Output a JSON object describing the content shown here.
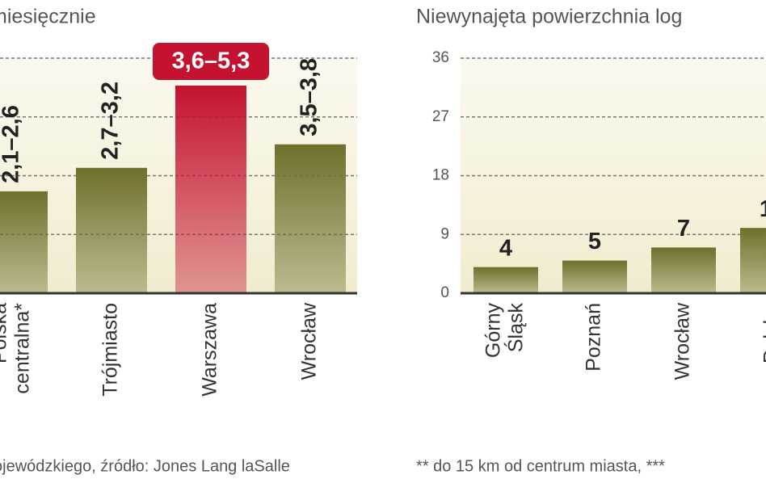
{
  "chart_data": [
    {
      "type": "bar",
      "title": "miesięcznie",
      "categories": [
        [
          "Polska",
          "centralna*"
        ],
        [
          "Trójmiasto"
        ],
        [
          "Warszawa"
        ],
        [
          "Wrocław"
        ]
      ],
      "values": [
        2.6,
        3.2,
        5.3,
        3.8
      ],
      "value_labels": [
        "2,1–2,6",
        "2,7–3,2",
        "3,6–5,3",
        "3,5–3,8"
      ],
      "colors": [
        "#6f6f2c",
        "#6f6f2c",
        "#c41230",
        "#6f6f2c"
      ],
      "highlight": 2,
      "ylim": [
        0,
        6
      ],
      "yticks": [
        0,
        1.5,
        3,
        4.5,
        6
      ],
      "tick_labels": false,
      "grid": true,
      "footnote": "ojewódzkiego, źródło: Jones Lang laSalle"
    },
    {
      "type": "bar",
      "title": "Niewynajęta powierzchnia log",
      "categories": [
        [
          "Górny",
          "Śląsk"
        ],
        [
          "Poznań"
        ],
        [
          "Wrocław"
        ],
        [
          "Polska"
        ]
      ],
      "values": [
        4,
        5,
        7,
        10
      ],
      "colors": [
        "#6f6f2c",
        "#6f6f2c",
        "#6f6f2c",
        "#6f6f2c"
      ],
      "ylim": [
        0,
        36
      ],
      "yticks": [
        0,
        9,
        18,
        27,
        36
      ],
      "tick_labels": true,
      "grid": true,
      "footnote": "** do 15 km od centrum miasta, ***"
    }
  ]
}
